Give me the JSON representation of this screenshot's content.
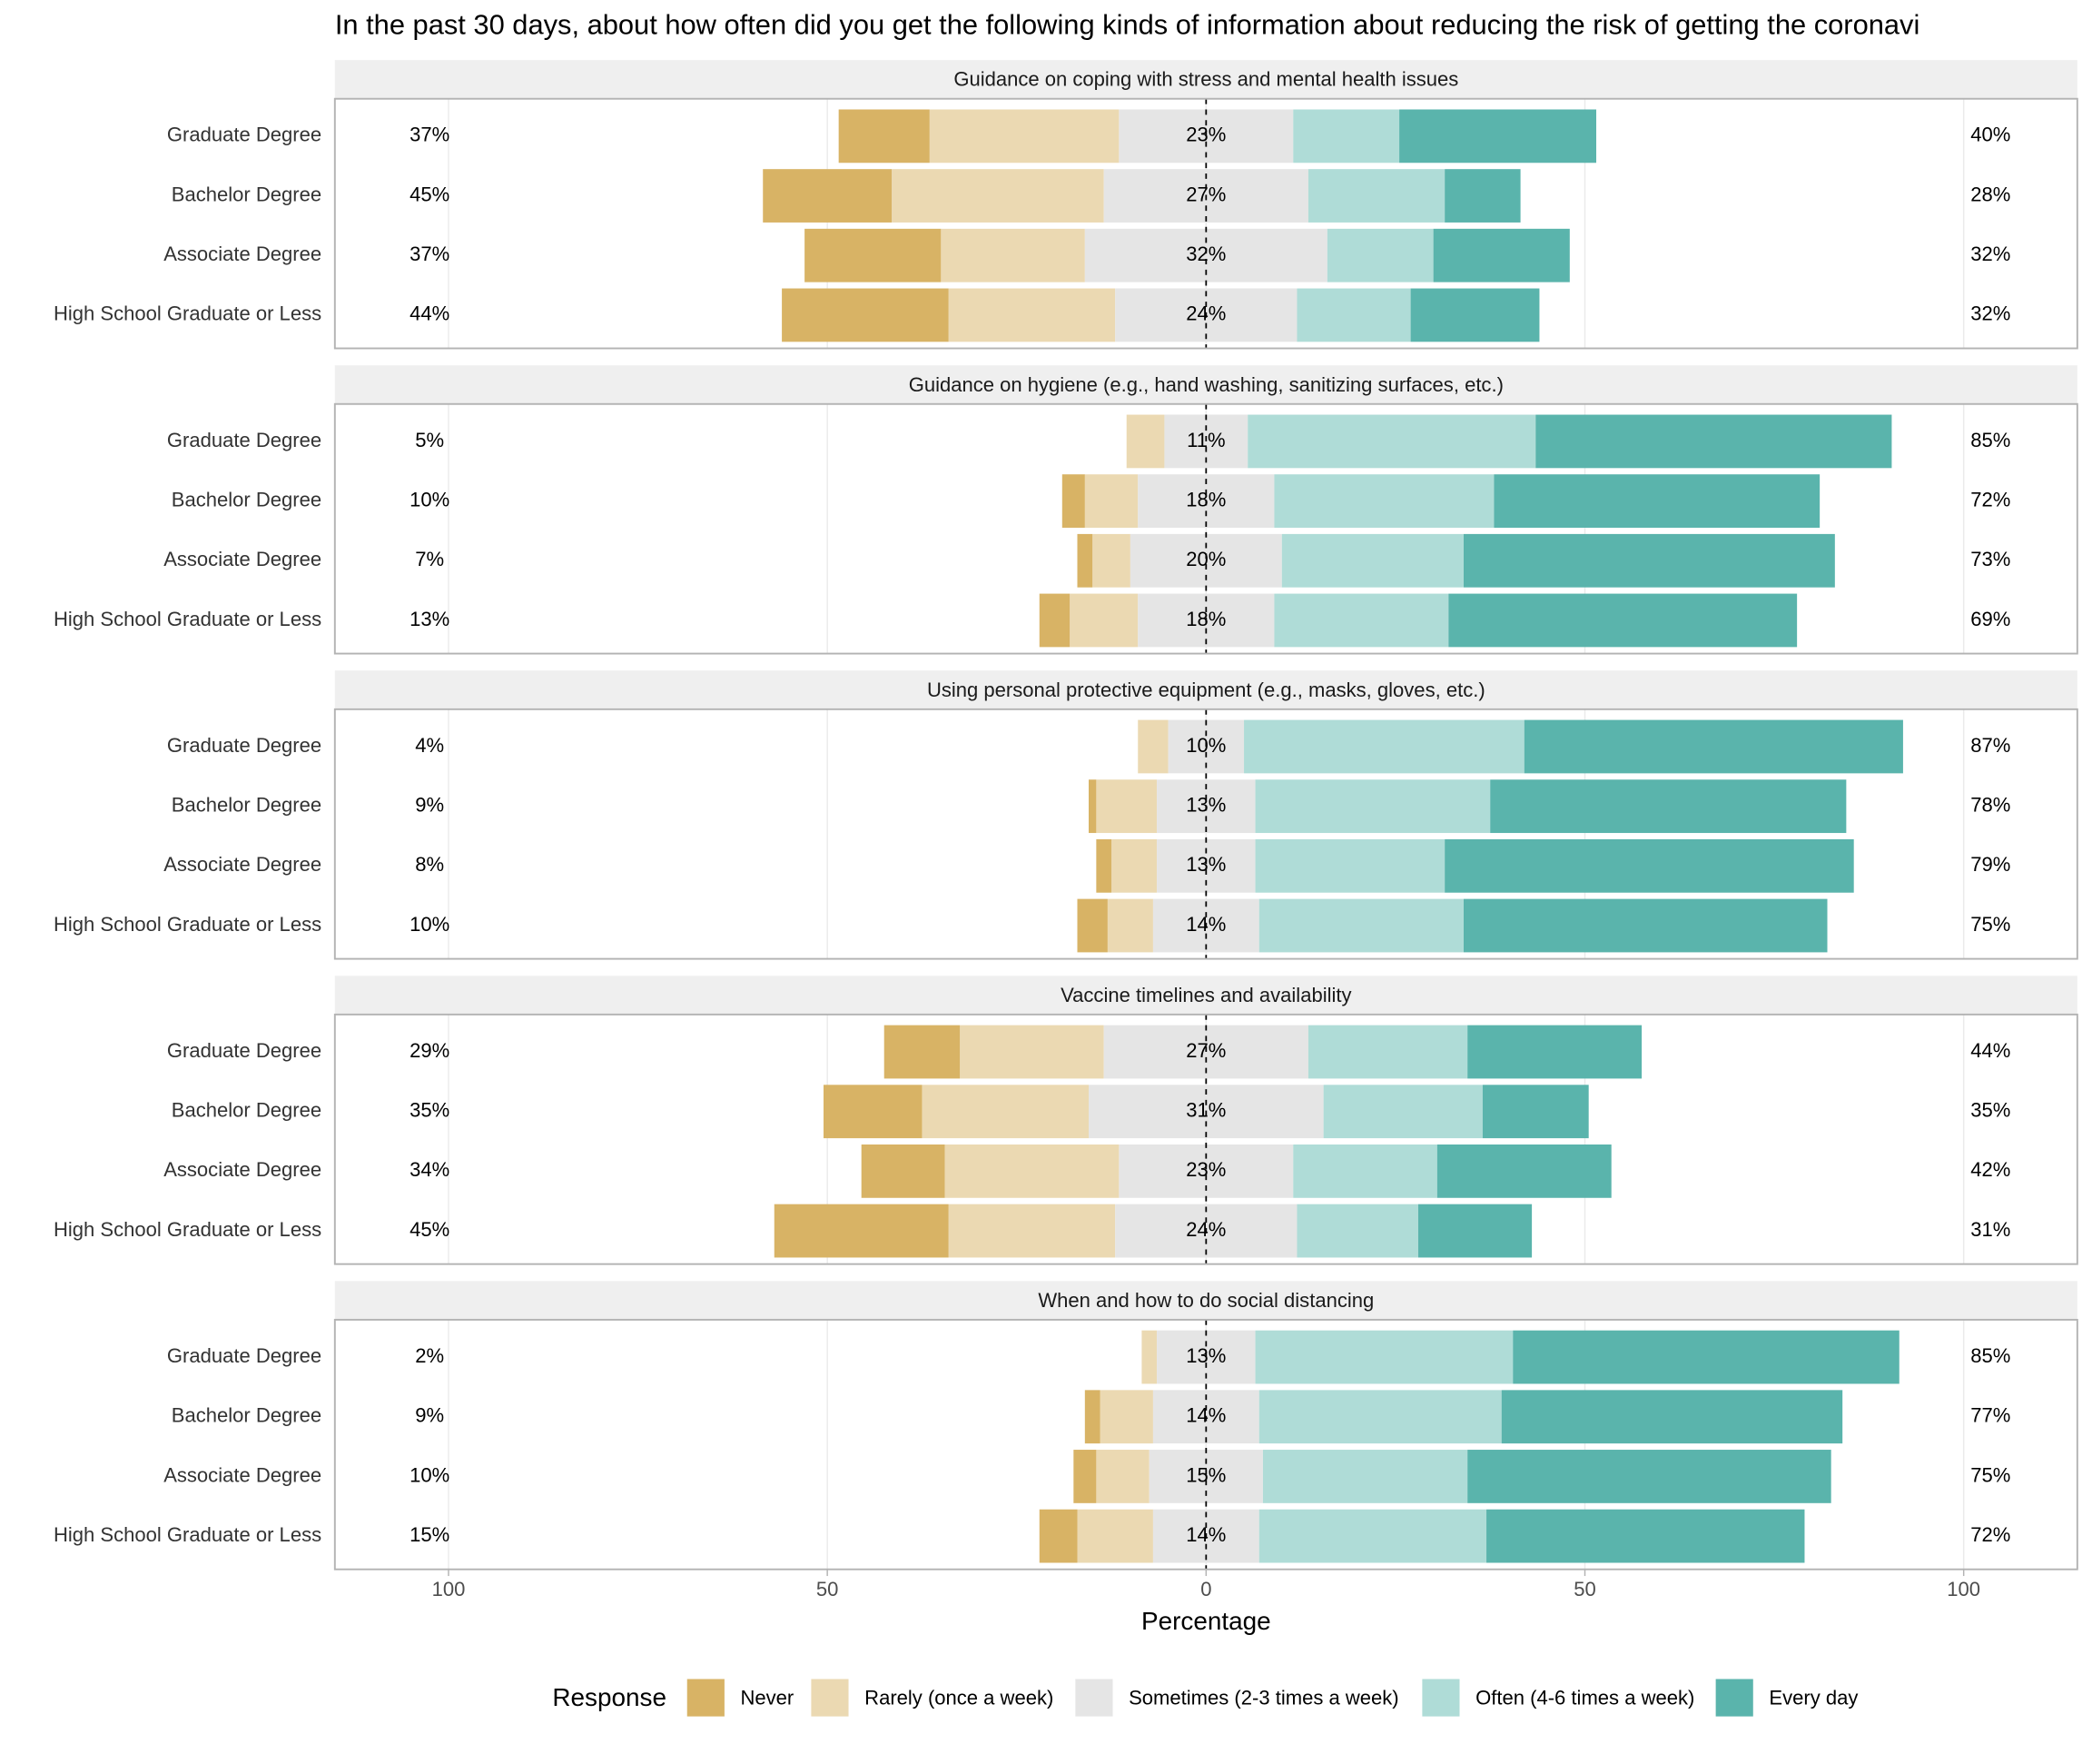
{
  "title": "In the past 30 days, about how often did you get the following kinds of information about reducing the risk of getting the coronavi",
  "x_label": "Percentage",
  "legend_title": "Response",
  "chart_data": [
    {
      "type": "likert",
      "title": "Guidance on coping with stress and mental health issues",
      "categories": [
        "Graduate Degree",
        "Bachelor Degree",
        "Associate Degree",
        "High School Graduate or Less"
      ],
      "xlim": [
        -115,
        115
      ],
      "xticks": [
        {
          "value": -100,
          "label": "100"
        },
        {
          "value": -50,
          "label": "50"
        },
        0,
        50,
        100
      ],
      "grid": true,
      "series": [
        {
          "name": "Never",
          "color": "#d8b365",
          "values": [
            12,
            17,
            18,
            22
          ]
        },
        {
          "name": "Rarely (once a week)",
          "color": "#ebd9b2",
          "values": [
            25,
            28,
            19,
            22
          ]
        },
        {
          "name": "Sometimes (2-3 times a week)",
          "color": "#e5e5e5",
          "values": [
            23,
            27,
            32,
            24
          ],
          "value_labels": [
            "23%",
            "27%",
            "32%",
            "24%"
          ]
        },
        {
          "name": "Often (4-6 times a week)",
          "color": "#afdcd7",
          "values": [
            14,
            18,
            14,
            15
          ]
        },
        {
          "name": "Every day",
          "color": "#5ab4ac",
          "values": [
            26,
            10,
            18,
            17
          ]
        }
      ],
      "low": {
        "values": [
          37,
          45,
          37,
          44
        ],
        "value_labels": [
          "37%",
          "45%",
          "37%",
          "44%"
        ]
      },
      "high": {
        "values": [
          40,
          28,
          32,
          32
        ],
        "value_labels": [
          "40%",
          "28%",
          "32%",
          "32%"
        ]
      }
    },
    {
      "type": "likert",
      "title": "Guidance on hygiene (e.g., hand washing, sanitizing surfaces, etc.)",
      "categories": [
        "Graduate Degree",
        "Bachelor Degree",
        "Associate Degree",
        "High School Graduate or Less"
      ],
      "xlim": [
        -115,
        115
      ],
      "xticks": [
        {
          "value": -100,
          "label": "100"
        },
        {
          "value": -50,
          "label": "50"
        },
        0,
        50,
        100
      ],
      "grid": true,
      "series": [
        {
          "name": "Never",
          "color": "#d8b365",
          "values": [
            0,
            3,
            2,
            4
          ]
        },
        {
          "name": "Rarely (once a week)",
          "color": "#ebd9b2",
          "values": [
            5,
            7,
            5,
            9
          ]
        },
        {
          "name": "Sometimes (2-3 times a week)",
          "color": "#e5e5e5",
          "values": [
            11,
            18,
            20,
            18
          ],
          "value_labels": [
            "11%",
            "18%",
            "20%",
            "18%"
          ]
        },
        {
          "name": "Often (4-6 times a week)",
          "color": "#afdcd7",
          "values": [
            38,
            29,
            24,
            23
          ]
        },
        {
          "name": "Every day",
          "color": "#5ab4ac",
          "values": [
            47,
            43,
            49,
            46
          ]
        }
      ],
      "low": {
        "values": [
          5,
          10,
          7,
          13
        ],
        "value_labels": [
          "5%",
          "10%",
          "7%",
          "13%"
        ]
      },
      "high": {
        "values": [
          85,
          72,
          73,
          69
        ],
        "value_labels": [
          "85%",
          "72%",
          "73%",
          "69%"
        ]
      }
    },
    {
      "type": "likert",
      "title": "Using personal protective equipment (e.g., masks, gloves, etc.)",
      "categories": [
        "Graduate Degree",
        "Bachelor Degree",
        "Associate Degree",
        "High School Graduate or Less"
      ],
      "xlim": [
        -115,
        115
      ],
      "xticks": [
        {
          "value": -100,
          "label": "100"
        },
        {
          "value": -50,
          "label": "50"
        },
        0,
        50,
        100
      ],
      "grid": true,
      "series": [
        {
          "name": "Never",
          "color": "#d8b365",
          "values": [
            0,
            1,
            2,
            4
          ]
        },
        {
          "name": "Rarely (once a week)",
          "color": "#ebd9b2",
          "values": [
            4,
            8,
            6,
            6
          ]
        },
        {
          "name": "Sometimes (2-3 times a week)",
          "color": "#e5e5e5",
          "values": [
            10,
            13,
            13,
            14
          ],
          "value_labels": [
            "10%",
            "13%",
            "13%",
            "14%"
          ]
        },
        {
          "name": "Often (4-6 times a week)",
          "color": "#afdcd7",
          "values": [
            37,
            31,
            25,
            27
          ]
        },
        {
          "name": "Every day",
          "color": "#5ab4ac",
          "values": [
            50,
            47,
            54,
            48
          ]
        }
      ],
      "low": {
        "values": [
          4,
          9,
          8,
          10
        ],
        "value_labels": [
          "4%",
          "9%",
          "8%",
          "10%"
        ]
      },
      "high": {
        "values": [
          87,
          78,
          79,
          75
        ],
        "value_labels": [
          "87%",
          "78%",
          "79%",
          "75%"
        ]
      }
    },
    {
      "type": "likert",
      "title": "Vaccine timelines and availability",
      "categories": [
        "Graduate Degree",
        "Bachelor Degree",
        "Associate Degree",
        "High School Graduate or Less"
      ],
      "xlim": [
        -115,
        115
      ],
      "xticks": [
        {
          "value": -100,
          "label": "100"
        },
        {
          "value": -50,
          "label": "50"
        },
        0,
        50,
        100
      ],
      "grid": true,
      "series": [
        {
          "name": "Never",
          "color": "#d8b365",
          "values": [
            10,
            13,
            11,
            23
          ]
        },
        {
          "name": "Rarely (once a week)",
          "color": "#ebd9b2",
          "values": [
            19,
            22,
            23,
            22
          ]
        },
        {
          "name": "Sometimes (2-3 times a week)",
          "color": "#e5e5e5",
          "values": [
            27,
            31,
            23,
            24
          ],
          "value_labels": [
            "27%",
            "31%",
            "23%",
            "24%"
          ]
        },
        {
          "name": "Often (4-6 times a week)",
          "color": "#afdcd7",
          "values": [
            21,
            21,
            19,
            16
          ]
        },
        {
          "name": "Every day",
          "color": "#5ab4ac",
          "values": [
            23,
            14,
            23,
            15
          ]
        }
      ],
      "low": {
        "values": [
          29,
          35,
          34,
          45
        ],
        "value_labels": [
          "29%",
          "35%",
          "34%",
          "45%"
        ]
      },
      "high": {
        "values": [
          44,
          35,
          42,
          31
        ],
        "value_labels": [
          "44%",
          "35%",
          "42%",
          "31%"
        ]
      }
    },
    {
      "type": "likert",
      "title": "When and how to do social distancing",
      "categories": [
        "Graduate Degree",
        "Bachelor Degree",
        "Associate Degree",
        "High School Graduate or Less"
      ],
      "xlim": [
        -115,
        115
      ],
      "xticks": [
        {
          "value": -100,
          "label": "100"
        },
        {
          "value": -50,
          "label": "50"
        },
        0,
        50,
        100
      ],
      "grid": true,
      "series": [
        {
          "name": "Never",
          "color": "#d8b365",
          "values": [
            0,
            2,
            3,
            5
          ]
        },
        {
          "name": "Rarely (once a week)",
          "color": "#ebd9b2",
          "values": [
            2,
            7,
            7,
            10
          ]
        },
        {
          "name": "Sometimes (2-3 times a week)",
          "color": "#e5e5e5",
          "values": [
            13,
            14,
            15,
            14
          ],
          "value_labels": [
            "13%",
            "14%",
            "15%",
            "14%"
          ]
        },
        {
          "name": "Often (4-6 times a week)",
          "color": "#afdcd7",
          "values": [
            34,
            32,
            27,
            30
          ]
        },
        {
          "name": "Every day",
          "color": "#5ab4ac",
          "values": [
            51,
            45,
            48,
            42
          ]
        }
      ],
      "low": {
        "values": [
          2,
          9,
          10,
          15
        ],
        "value_labels": [
          "2%",
          "9%",
          "10%",
          "15%"
        ]
      },
      "high": {
        "values": [
          85,
          77,
          75,
          72
        ],
        "value_labels": [
          "85%",
          "77%",
          "75%",
          "72%"
        ]
      }
    }
  ]
}
